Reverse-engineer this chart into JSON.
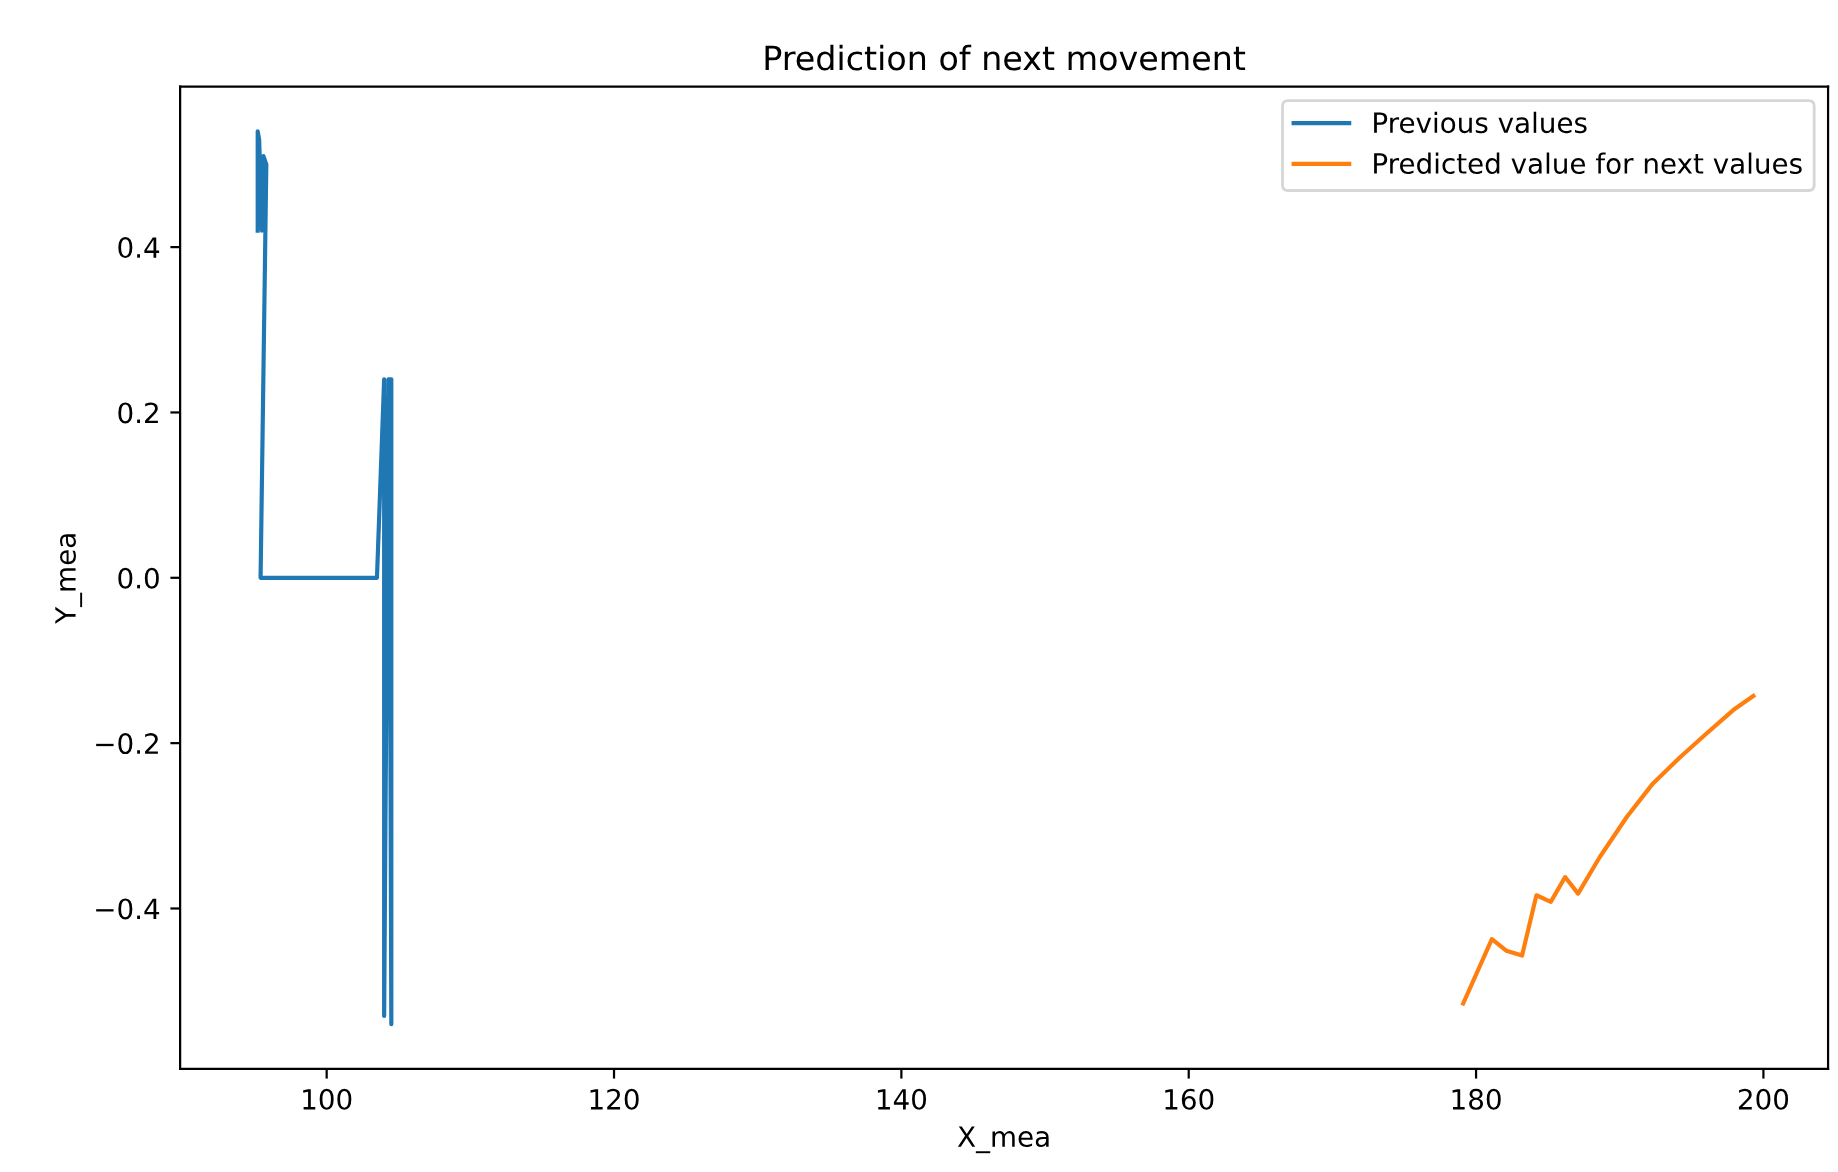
{
  "chart_data": {
    "type": "line",
    "title": "Prediction of next movement",
    "xlabel": "X_mea",
    "ylabel": "Y_mea",
    "xlim": [
      89.8,
      204.5
    ],
    "xticks": [
      100,
      120,
      140,
      160,
      180,
      200
    ],
    "ylim": [
      -0.594,
      0.594
    ],
    "yticks": [
      {
        "value": -0.4,
        "label": "−0.4"
      },
      {
        "value": -0.2,
        "label": "−0.2"
      },
      {
        "value": 0.0,
        "label": "0.0"
      },
      0.2,
      0.4
    ],
    "legend": "top right",
    "grid": false,
    "series": [
      {
        "name": "Previous values",
        "color": "#1f77b4",
        "x": [
          95.2,
          95.2,
          95.3,
          95.5,
          95.6,
          95.8,
          95.4,
          95.8,
          103.5,
          104.0,
          104.0,
          104.3,
          104.5,
          104.5,
          104.4
        ],
        "values": [
          0.42,
          0.54,
          0.53,
          0.42,
          0.51,
          0.5,
          0.0,
          0.0,
          0.0,
          0.24,
          -0.53,
          0.24,
          0.24,
          -0.54,
          0.0
        ]
      },
      {
        "name": "Predicted value for next values",
        "color": "#ff7f0e",
        "x": [
          179.1,
          181.1,
          182.1,
          183.2,
          184.2,
          185.2,
          186.2,
          187.1,
          188.6,
          190.5,
          192.3,
          194.2,
          196.0,
          197.9,
          199.3
        ],
        "values": [
          -0.515,
          -0.437,
          -0.451,
          -0.457,
          -0.384,
          -0.392,
          -0.362,
          -0.382,
          -0.338,
          -0.289,
          -0.249,
          -0.217,
          -0.189,
          -0.16,
          -0.143
        ]
      }
    ]
  }
}
